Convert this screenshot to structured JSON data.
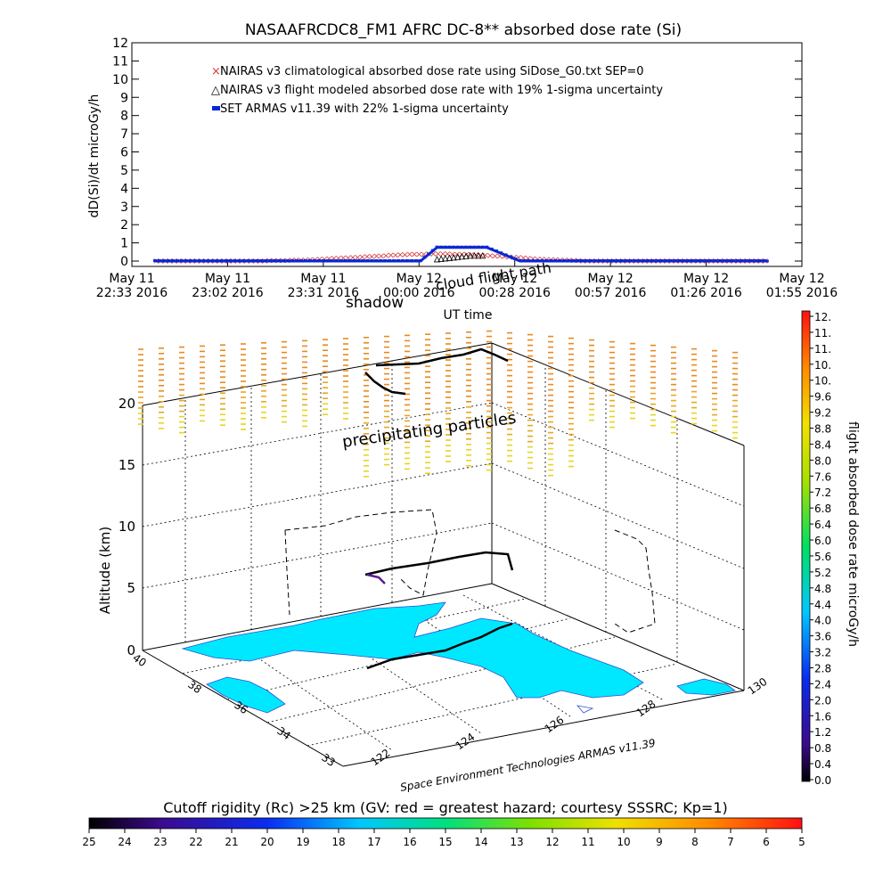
{
  "colors": {
    "climatological": "#d63c3c",
    "flight_modeled": "#000000",
    "armas": "#0a28d2",
    "ocean_fill": "#00e8ff",
    "rigidity_far": "#e98a1e",
    "rigidity_near": "#e8d420"
  },
  "chart_data": [
    {
      "type": "line",
      "title": "NASAAFRCDC8_FM1 AFRC DC-8** absorbed dose rate (Si)",
      "ylabel": "dD(Si)/dt microGy/h",
      "xlabel": "UT time",
      "ylim": [
        0,
        12
      ],
      "y_ticks": [
        "0",
        "1",
        "2",
        "3",
        "4",
        "5",
        "6",
        "7",
        "8",
        "9",
        "10",
        "11",
        "12"
      ],
      "x_ticks": [
        {
          "top": "May 11",
          "bottom": "22:33 2016"
        },
        {
          "top": "May 11",
          "bottom": "23:02 2016"
        },
        {
          "top": "May 11",
          "bottom": "23:31 2016"
        },
        {
          "top": "May 12",
          "bottom": "00:00 2016"
        },
        {
          "top": "May 12",
          "bottom": "00:28 2016"
        },
        {
          "top": "May 12",
          "bottom": "00:57 2016"
        },
        {
          "top": "May 12",
          "bottom": "01:26 2016"
        },
        {
          "top": "May 12",
          "bottom": "01:55 2016"
        }
      ],
      "x_range": [
        "2016-05-11T22:33",
        "2016-05-12T01:55"
      ],
      "legend_position": "top-left",
      "series": [
        {
          "name": "NAIRAS v3 climatological absorbed dose rate using SiDose_G0.txt SEP=0",
          "marker": "x",
          "x": [
            "2016-05-11T22:40",
            "2016-05-11T22:55",
            "2016-05-11T23:10",
            "2016-05-11T23:25",
            "2016-05-11T23:35",
            "2016-05-11T23:45",
            "2016-05-11T23:55",
            "2016-05-12T00:05",
            "2016-05-12T00:15",
            "2016-05-12T00:25",
            "2016-05-12T00:35",
            "2016-05-12T00:50",
            "2016-05-12T01:10",
            "2016-05-12T01:30",
            "2016-05-12T01:45"
          ],
          "values": [
            0.05,
            0.05,
            0.05,
            0.1,
            0.2,
            0.3,
            0.4,
            0.45,
            0.4,
            0.3,
            0.15,
            0.05,
            0.05,
            0.05,
            0.05
          ]
        },
        {
          "name": "NAIRAS v3 flight modeled absorbed dose rate with 19% 1-sigma uncertainty",
          "marker": "triangle",
          "x": [
            "2016-05-12T00:05",
            "2016-05-12T00:10",
            "2016-05-12T00:15",
            "2016-05-12T00:20"
          ],
          "values": [
            0.1,
            0.2,
            0.3,
            0.3
          ]
        },
        {
          "name": "SET ARMAS v11.39 with 22% 1-sigma uncertainty",
          "marker": "square",
          "x": [
            "2016-05-11T22:40",
            "2016-05-11T23:20",
            "2016-05-12T00:00",
            "2016-05-12T00:05",
            "2016-05-12T00:10",
            "2016-05-12T00:15",
            "2016-05-12T00:20",
            "2016-05-12T00:30",
            "2016-05-12T01:10",
            "2016-05-12T01:45"
          ],
          "values": [
            0.0,
            0.0,
            0.0,
            0.75,
            0.75,
            0.75,
            0.75,
            0.0,
            0.0,
            0.0
          ]
        }
      ]
    },
    {
      "type": "scatter",
      "z_label": "Altitude (km)",
      "z_ticks": [
        "0",
        "5",
        "10",
        "15",
        "20"
      ],
      "lat_ticks": [
        "40",
        "38",
        "36",
        "34",
        "33"
      ],
      "lon_ticks": [
        "122",
        "124",
        "126",
        "128",
        "130"
      ],
      "annotations": [
        "shadow",
        "cloud flight path",
        "precipitating particles",
        "Space Environment Technologies ARMAS v11.39"
      ]
    },
    {
      "type": "heatmap",
      "orientation": "vertical",
      "label": "flight absorbed dose rate microGy/h",
      "ticks": [
        "12.",
        "11.",
        "11.",
        "10.",
        "10.",
        "9.6",
        "9.2",
        "8.8",
        "8.4",
        "8.0",
        "7.6",
        "7.2",
        "6.8",
        "6.4",
        "6.0",
        "5.6",
        "5.2",
        "4.8",
        "4.4",
        "4.0",
        "3.6",
        "3.2",
        "2.8",
        "2.4",
        "2.0",
        "1.6",
        "1.2",
        "0.8",
        "0.4",
        "0.0"
      ],
      "range": [
        0,
        12
      ]
    },
    {
      "type": "heatmap",
      "orientation": "horizontal",
      "label": "Cutoff rigidity (Rc) >25 km (GV: red = greatest hazard; courtesy SSSRC; Kp=1)",
      "ticks": [
        "25",
        "24",
        "23",
        "22",
        "21",
        "20",
        "19",
        "18",
        "17",
        "16",
        "15",
        "14",
        "13",
        "12",
        "11",
        "10",
        "9",
        "8",
        "7",
        "6",
        "5"
      ],
      "range": [
        25,
        5
      ]
    }
  ]
}
